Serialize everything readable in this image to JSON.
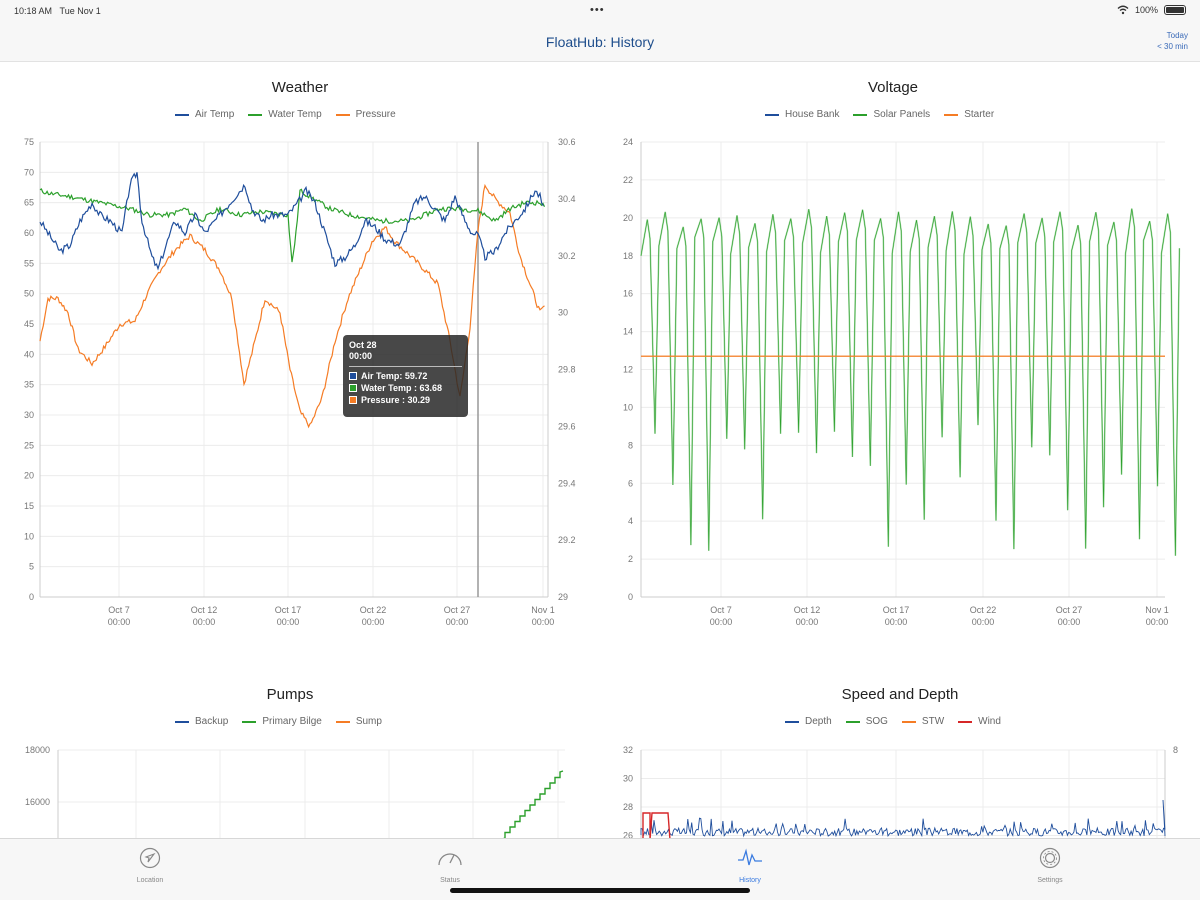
{
  "status_bar": {
    "time": "10:18 AM",
    "date": "Tue Nov 1",
    "dots": "•••",
    "battery": "100%"
  },
  "nav": {
    "title": "FloatHub: History",
    "range_line1": "Today",
    "range_line2": "< 30 min"
  },
  "x_ticks": [
    {
      "day": "Oct 7",
      "time": "00:00"
    },
    {
      "day": "Oct 12",
      "time": "00:00"
    },
    {
      "day": "Oct 17",
      "time": "00:00"
    },
    {
      "day": "Oct 22",
      "time": "00:00"
    },
    {
      "day": "Oct 27",
      "time": "00:00"
    },
    {
      "day": "Nov 1",
      "time": "00:00"
    }
  ],
  "weather": {
    "title": "Weather",
    "legend": [
      {
        "label": "Air Temp",
        "color": "#1f4e9c"
      },
      {
        "label": "Water Temp",
        "color": "#2ca02c"
      },
      {
        "label": "Pressure",
        "color": "#f57c25"
      }
    ],
    "y_left": [
      "75",
      "70",
      "65",
      "60",
      "55",
      "50",
      "45",
      "40",
      "35",
      "30",
      "25",
      "20",
      "15",
      "10",
      "5",
      "0"
    ],
    "y_right": [
      "30.6",
      "30.4",
      "30.2",
      "30",
      "29.8",
      "29.6",
      "29.4",
      "29.2",
      "29"
    ],
    "tooltip": {
      "date": "Oct 28",
      "time": "00:00",
      "rows": [
        {
          "text": "Air Temp: 59.72",
          "color": "#1f4e9c"
        },
        {
          "text": "Water Temp : 63.68",
          "color": "#2ca02c"
        },
        {
          "text": "Pressure : 30.29",
          "color": "#f57c25"
        }
      ]
    }
  },
  "voltage": {
    "title": "Voltage",
    "legend": [
      {
        "label": "House Bank",
        "color": "#1f4e9c"
      },
      {
        "label": "Solar Panels",
        "color": "#2ca02c"
      },
      {
        "label": "Starter",
        "color": "#f57c25"
      }
    ],
    "y_left": [
      "24",
      "22",
      "20",
      "18",
      "16",
      "14",
      "12",
      "10",
      "8",
      "6",
      "4",
      "2",
      "0"
    ]
  },
  "pumps": {
    "title": "Pumps",
    "legend": [
      {
        "label": "Backup",
        "color": "#1f4e9c"
      },
      {
        "label": "Primary Bilge",
        "color": "#2ca02c"
      },
      {
        "label": "Sump",
        "color": "#f57c25"
      }
    ],
    "y_left": [
      "18000",
      "16000"
    ]
  },
  "speed": {
    "title": "Speed and Depth",
    "legend": [
      {
        "label": "Depth",
        "color": "#1f4e9c"
      },
      {
        "label": "SOG",
        "color": "#2ca02c"
      },
      {
        "label": "STW",
        "color": "#f57c25"
      },
      {
        "label": "Wind",
        "color": "#d62728"
      }
    ],
    "y_left": [
      "32",
      "30",
      "28",
      "26"
    ],
    "y_right": [
      "8"
    ]
  },
  "tabs": [
    {
      "label": "Location",
      "icon": "location-arrow-icon",
      "active": false
    },
    {
      "label": "Status",
      "icon": "gauge-icon",
      "active": false
    },
    {
      "label": "History",
      "icon": "pulse-icon",
      "active": true
    },
    {
      "label": "Settings",
      "icon": "gear-icon",
      "active": false
    }
  ]
}
